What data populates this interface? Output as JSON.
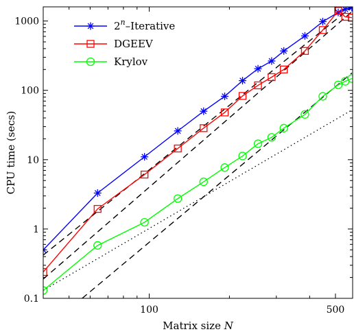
{
  "chart_data": {
    "type": "line",
    "xlabel": "Matrix size N",
    "ylabel": "CPU time (secs)",
    "x_scale": "log",
    "y_scale": "log",
    "xlim": [
      40,
      580
    ],
    "ylim": [
      0.1,
      1600
    ],
    "xticks": [
      {
        "value": 100,
        "label": "100"
      },
      {
        "value": 500,
        "label": "500"
      }
    ],
    "yticks": [
      {
        "value": 0.1,
        "label": "0.1"
      },
      {
        "value": 1,
        "label": "1"
      },
      {
        "value": 10,
        "label": "10"
      },
      {
        "value": 100,
        "label": "100"
      },
      {
        "value": 1000,
        "label": "1000"
      }
    ],
    "legend_position": "top-left",
    "series": [
      {
        "name": "2^n–Iterative",
        "legend_base": "2",
        "legend_sup": "n",
        "legend_rest": "–Iterative",
        "color": "#0000ff",
        "marker": "asterisk",
        "x": [
          40,
          64,
          96,
          128,
          160,
          192,
          224,
          256,
          288,
          320,
          384,
          448,
          512,
          544,
          576
        ],
        "y": [
          0.5,
          3.3,
          11,
          26,
          50,
          82,
          138,
          205,
          265,
          370,
          610,
          980,
          1330,
          1480,
          1560
        ]
      },
      {
        "name": "DGEEV",
        "color": "#ff0000",
        "marker": "square",
        "x": [
          40,
          64,
          96,
          128,
          160,
          192,
          224,
          256,
          288,
          320,
          384,
          448,
          512,
          544,
          576
        ],
        "y": [
          0.24,
          1.95,
          6.1,
          14.5,
          28.5,
          48,
          83,
          118,
          155,
          200,
          370,
          740,
          1400,
          1150,
          1120
        ]
      },
      {
        "name": "Krylov",
        "color": "#00ff00",
        "marker": "circle",
        "x": [
          40,
          64,
          96,
          128,
          160,
          192,
          224,
          256,
          288,
          320,
          384,
          448,
          512,
          544,
          576
        ],
        "y": [
          0.13,
          0.58,
          1.25,
          2.75,
          4.8,
          7.7,
          11.3,
          17,
          21,
          28.5,
          45,
          82,
          120,
          135,
          148
        ]
      }
    ],
    "reference_lines": [
      {
        "style": "dashed",
        "color": "#000000",
        "points": [
          [
            40,
            0.42
          ],
          [
            576,
            1600
          ]
        ]
      },
      {
        "style": "dashed",
        "color": "#000000",
        "points": [
          [
            40,
            0.19
          ],
          [
            576,
            1360
          ]
        ]
      },
      {
        "style": "dashed",
        "color": "#000000",
        "points": [
          [
            56,
            0.1
          ],
          [
            576,
            178
          ]
        ]
      },
      {
        "style": "dotted",
        "color": "#000000",
        "points": [
          [
            40,
            0.13
          ],
          [
            576,
            52
          ]
        ]
      }
    ]
  }
}
